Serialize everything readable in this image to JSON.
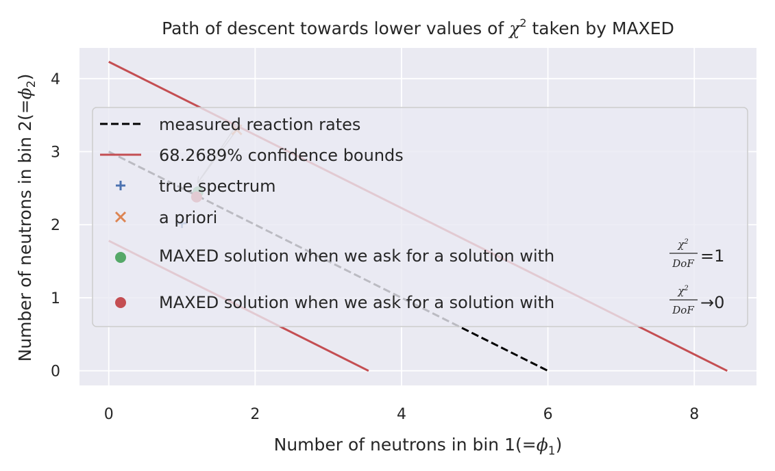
{
  "chart_data": {
    "type": "line",
    "title_parts": {
      "pre": "Path of descent towards lower values of ",
      "chi": "χ",
      "sup": "2",
      "post": " taken by MAXED"
    },
    "xlabel_parts": {
      "pre": "Number of neutrons in bin 1(",
      "eq": "=",
      "phi": "ϕ",
      "sub": "1",
      "post": ")"
    },
    "ylabel_parts": {
      "pre": "Number of neutrons in bin 2(",
      "eq": "=",
      "phi": "ϕ",
      "sub": "2",
      "post": ")"
    },
    "xlim": [
      -0.4,
      8.85
    ],
    "ylim": [
      -0.2,
      4.42
    ],
    "xticks": [
      0,
      2,
      4,
      6,
      8
    ],
    "yticks": [
      0,
      1,
      2,
      3,
      4
    ],
    "grid": true,
    "legend_position": "center-left",
    "colors": {
      "background": "#eaeaf2",
      "grid": "#ffffff",
      "measured": "#000000",
      "bounds": "#c44e52",
      "true": "#4c72b0",
      "apriori": "#dd8452",
      "chi1": "#55a868",
      "chi0": "#c44e52",
      "arrow": "#aaaaaa"
    },
    "series": [
      {
        "name": "measured reaction rates",
        "kind": "dashed-line",
        "points": [
          [
            0,
            3
          ],
          [
            6,
            0
          ]
        ]
      },
      {
        "name": "68.2689% confidence bounds",
        "kind": "line",
        "segments": [
          [
            [
              0,
              4.23
            ],
            [
              8.45,
              0
            ]
          ],
          [
            [
              0,
              1.78
            ],
            [
              3.55,
              0
            ]
          ]
        ]
      },
      {
        "name": "true spectrum",
        "kind": "plus",
        "points": [
          [
            1.0,
            2.02
          ]
        ]
      },
      {
        "name": "a priori",
        "kind": "x",
        "points": [
          [
            1.75,
            3.3
          ]
        ]
      },
      {
        "name": "MAXED solution when we ask for a solution with",
        "kind": "circle",
        "points": [
          [
            1.22,
            2.45
          ]
        ],
        "legend_suffix": "=1"
      },
      {
        "name": "MAXED solution when we ask for a solution with",
        "kind": "circle",
        "points": [
          [
            1.2,
            2.38
          ]
        ],
        "legend_suffix": "→0"
      }
    ],
    "descent_path": [
      [
        1.75,
        3.3
      ],
      [
        1.22,
        2.58
      ],
      [
        1.75,
        3.37
      ]
    ],
    "legend_fraction": {
      "numerator_chi": "χ",
      "numerator_sup": "2",
      "denominator": "DoF"
    }
  }
}
